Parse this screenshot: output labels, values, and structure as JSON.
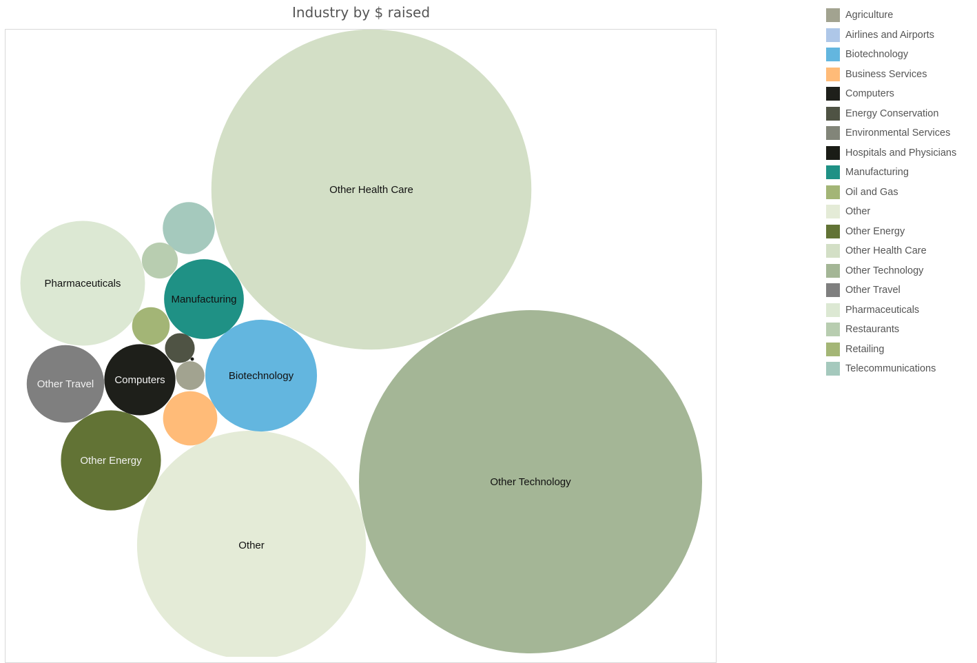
{
  "chart_data": {
    "type": "bubble",
    "title": "Industry by $ raised",
    "legend_position": "right",
    "legend": [
      {
        "name": "Agriculture",
        "color": "#a2a390"
      },
      {
        "name": "Airlines and Airports",
        "color": "#aec7e8"
      },
      {
        "name": "Biotechnology",
        "color": "#63b6df"
      },
      {
        "name": "Business Services",
        "color": "#ffbb78"
      },
      {
        "name": "Computers",
        "color": "#1e1f1a"
      },
      {
        "name": "Energy Conservation",
        "color": "#4f5344"
      },
      {
        "name": "Environmental Services",
        "color": "#828579"
      },
      {
        "name": "Hospitals and Physicians",
        "color": "#1a1c16"
      },
      {
        "name": "Manufacturing",
        "color": "#1f9185"
      },
      {
        "name": "Oil and Gas",
        "color": "#a3b576"
      },
      {
        "name": "Other",
        "color": "#e4ebd7"
      },
      {
        "name": "Other Energy",
        "color": "#627335"
      },
      {
        "name": "Other Health Care",
        "color": "#d3dfc6"
      },
      {
        "name": "Other Technology",
        "color": "#a4b696"
      },
      {
        "name": "Other Travel",
        "color": "#7f7f7f"
      },
      {
        "name": "Pharmaceuticals",
        "color": "#dce8d3"
      },
      {
        "name": "Restaurants",
        "color": "#b8cdb0"
      },
      {
        "name": "Retailing",
        "color": "#a4b676"
      },
      {
        "name": "Telecommunications",
        "color": "#a5c9bd"
      }
    ],
    "bubbles": [
      {
        "name": "Other Technology",
        "value": 100,
        "label": "Other Technology",
        "label_color": "#111111"
      },
      {
        "name": "Other Health Care",
        "value": 87,
        "label": "Other Health Care",
        "label_color": "#111111"
      },
      {
        "name": "Other",
        "value": 44.5,
        "label": "Other",
        "label_color": "#111111"
      },
      {
        "name": "Pharmaceuticals",
        "value": 13.2,
        "label": "Pharmaceuticals",
        "label_color": "#111111"
      },
      {
        "name": "Biotechnology",
        "value": 10.6,
        "label": "Biotechnology",
        "label_color": "#111111"
      },
      {
        "name": "Other Energy",
        "value": 8.5,
        "label": "Other Energy",
        "label_color": "#f0f0f0"
      },
      {
        "name": "Manufacturing",
        "value": 5.4,
        "label": "Manufacturing",
        "label_color": "#111111"
      },
      {
        "name": "Other Travel",
        "value": 5.1,
        "label": "Other Travel",
        "label_color": "#f0f0f0"
      },
      {
        "name": "Computers",
        "value": 4.3,
        "label": "Computers",
        "label_color": "#f0f0f0"
      },
      {
        "name": "Business Services",
        "value": 2.5,
        "label": "",
        "label_color": "#111111"
      },
      {
        "name": "Telecommunications",
        "value": 2.3,
        "label": "",
        "label_color": "#111111"
      },
      {
        "name": "Oil and Gas",
        "value": 1.2,
        "label": "",
        "label_color": "#111111"
      },
      {
        "name": "Restaurants",
        "value": 1.1,
        "label": "",
        "label_color": "#111111"
      },
      {
        "name": "Energy Conservation",
        "value": 0.75,
        "label": "",
        "label_color": "#111111"
      },
      {
        "name": "Agriculture",
        "value": 0.7,
        "label": "",
        "label_color": "#111111"
      },
      {
        "name": "Hospitals and Physicians",
        "value": 0.01,
        "label": "",
        "label_color": "#111111"
      }
    ]
  }
}
